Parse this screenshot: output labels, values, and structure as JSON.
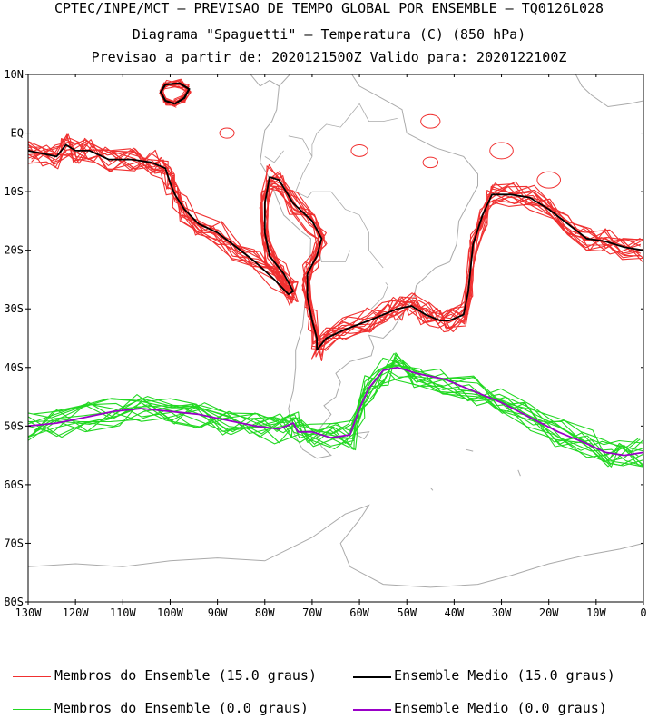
{
  "title": {
    "line1": "CPTEC/INPE/MCT – PREVISAO DE TEMPO GLOBAL POR ENSEMBLE – TQ0126L028",
    "line2": "Diagrama \"Spaguetti\" – Temperatura (C) (850 hPa)",
    "line3": "Previsao a partir de: 2020121500Z  Valido para: 2020122100Z"
  },
  "axes": {
    "lat_labels": [
      "10N",
      "EQ",
      "10S",
      "20S",
      "30S",
      "40S",
      "50S",
      "60S",
      "70S",
      "80S"
    ],
    "lon_labels": [
      "130W",
      "120W",
      "110W",
      "100W",
      "90W",
      "80W",
      "70W",
      "60W",
      "50W",
      "40W",
      "30W",
      "20W",
      "10W",
      "0"
    ],
    "lat_range": [
      -80,
      10
    ],
    "lon_range": [
      -130,
      0
    ]
  },
  "colors": {
    "members_15": "#f03030",
    "mean_15": "#000000",
    "members_0": "#22d822",
    "mean_0": "#9a00c8",
    "coast": "#aaaaaa"
  },
  "legend": {
    "members_15_label": "Membros do Ensemble (15.0 graus)",
    "mean_15_label": "Ensemble Medio (15.0 graus)",
    "members_0_label": "Membros do Ensemble (0.0 graus)",
    "mean_0_label": "Ensemble Medio (0.0 graus)"
  },
  "isotherm_15_mean": [
    [
      -130,
      -3
    ],
    [
      -127,
      -3.5
    ],
    [
      -124,
      -4
    ],
    [
      -122,
      -2
    ],
    [
      -120,
      -3
    ],
    [
      -117,
      -3
    ],
    [
      -113,
      -4.5
    ],
    [
      -108,
      -4.5
    ],
    [
      -104,
      -5
    ],
    [
      -101,
      -6
    ],
    [
      -100,
      -8.5
    ],
    [
      -99,
      -10.5
    ],
    [
      -97,
      -13
    ],
    [
      -94,
      -15.5
    ],
    [
      -90,
      -17
    ],
    [
      -86,
      -19.5
    ],
    [
      -82,
      -22
    ],
    [
      -78,
      -25
    ],
    [
      -75,
      -27.5
    ],
    [
      -74,
      -27
    ],
    [
      -76,
      -24
    ],
    [
      -79,
      -21
    ],
    [
      -80,
      -17
    ],
    [
      -80,
      -12
    ],
    [
      -79,
      -7.5
    ],
    [
      -77,
      -8
    ],
    [
      -74,
      -12
    ],
    [
      -70,
      -15
    ],
    [
      -68,
      -18
    ],
    [
      -69,
      -21
    ],
    [
      -71,
      -24
    ],
    [
      -71,
      -28
    ],
    [
      -70,
      -32
    ],
    [
      -69,
      -35
    ],
    [
      -69,
      -37
    ],
    [
      -67,
      -35
    ],
    [
      -63,
      -33.5
    ],
    [
      -58,
      -32
    ],
    [
      -55,
      -31
    ],
    [
      -52,
      -30
    ],
    [
      -49,
      -29.5
    ],
    [
      -46,
      -31
    ],
    [
      -43,
      -32
    ],
    [
      -41,
      -32
    ],
    [
      -38,
      -31
    ],
    [
      -37,
      -27
    ],
    [
      -36,
      -19
    ],
    [
      -34,
      -14
    ],
    [
      -32,
      -10.5
    ],
    [
      -28,
      -10.5
    ],
    [
      -24,
      -11
    ],
    [
      -20,
      -13
    ],
    [
      -16,
      -15.5
    ],
    [
      -12,
      -18
    ],
    [
      -8,
      -18.5
    ],
    [
      -4,
      -19.5
    ],
    [
      0,
      -20
    ]
  ],
  "isotherm_0_mean": [
    [
      -130,
      -50
    ],
    [
      -124,
      -49.5
    ],
    [
      -118,
      -48.5
    ],
    [
      -112,
      -47.5
    ],
    [
      -106,
      -47
    ],
    [
      -100,
      -47.5
    ],
    [
      -94,
      -48
    ],
    [
      -88,
      -49
    ],
    [
      -82,
      -50
    ],
    [
      -77,
      -50.5
    ],
    [
      -74,
      -49.5
    ],
    [
      -73,
      -51
    ],
    [
      -70,
      -51
    ],
    [
      -66,
      -52
    ],
    [
      -62,
      -51.5
    ],
    [
      -60,
      -47
    ],
    [
      -58,
      -43.5
    ],
    [
      -55,
      -40.5
    ],
    [
      -52,
      -40
    ],
    [
      -48,
      -41
    ],
    [
      -42,
      -42
    ],
    [
      -36,
      -44
    ],
    [
      -30,
      -46
    ],
    [
      -24,
      -48.5
    ],
    [
      -18,
      -51
    ],
    [
      -12,
      -53
    ],
    [
      -8,
      -54.5
    ],
    [
      -4,
      -55
    ],
    [
      0,
      -54.5
    ]
  ],
  "gyre_15_mean": [
    [
      -99,
      5
    ],
    [
      -97,
      6
    ],
    [
      -96,
      7.5
    ],
    [
      -98,
      8.5
    ],
    [
      -101,
      8.3
    ],
    [
      -102,
      7
    ],
    [
      -101,
      5.5
    ],
    [
      -99,
      5
    ]
  ]
}
